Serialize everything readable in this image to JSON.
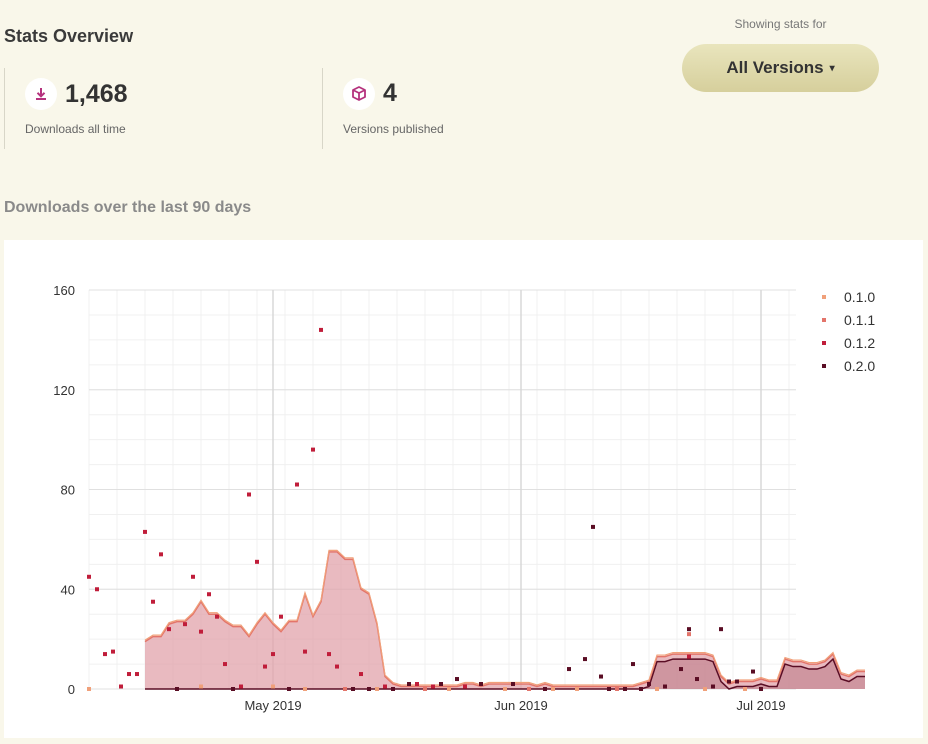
{
  "header": {
    "title": "Stats Overview",
    "showing_label": "Showing stats for",
    "version_select": "All Versions",
    "version_caret": "▾"
  },
  "stats": [
    {
      "value": "1,468",
      "label": "Downloads all time",
      "icon": "download-icon"
    },
    {
      "value": "4",
      "label": "Versions published",
      "icon": "package-icon"
    }
  ],
  "section_title": "Downloads over the last 90 days",
  "colors": {
    "accent": "#b5327d",
    "v010": "#f0a07a",
    "v011": "#e3746a",
    "v012": "#c01d3a",
    "v020": "#5a0d24"
  },
  "chart_data": {
    "type": "area",
    "title": "",
    "xlabel": "",
    "ylabel": "",
    "x_start": "2019-04-08",
    "x_ticks": [
      {
        "label": "May 2019",
        "date": "2019-05-01"
      },
      {
        "label": "Jun 2019",
        "date": "2019-06-01"
      },
      {
        "label": "Jul 2019",
        "date": "2019-07-01"
      }
    ],
    "ylim": [
      0,
      160
    ],
    "y_ticks": [
      0,
      40,
      80,
      120,
      160
    ],
    "grid": true,
    "legend_position": "top-right",
    "series": [
      {
        "name": "0.1.0",
        "color": "#f0a07a"
      },
      {
        "name": "0.1.1",
        "color": "#e3746a"
      },
      {
        "name": "0.1.2",
        "color": "#c01d3a"
      },
      {
        "name": "0.2.0",
        "color": "#5a0d24"
      }
    ],
    "area_band": {
      "start_day": 7,
      "totals": [
        19,
        21,
        21,
        26,
        27,
        27,
        30,
        35,
        30,
        30,
        27,
        25,
        25,
        21,
        26,
        30,
        26,
        23,
        27,
        27,
        38,
        29,
        35,
        55,
        55,
        52,
        52,
        40,
        38,
        26,
        5,
        2,
        1,
        1,
        1,
        1,
        1,
        1,
        1,
        1,
        2,
        2,
        1,
        2,
        2,
        2,
        2,
        2,
        2,
        1,
        2,
        1,
        1,
        1,
        1,
        1,
        1,
        1,
        1,
        1,
        1,
        1,
        2,
        3,
        13,
        13,
        14,
        14,
        14,
        14,
        14,
        13,
        5,
        2,
        3,
        3,
        3,
        4,
        3,
        3,
        12,
        11,
        11,
        10,
        10,
        11,
        14,
        6,
        5,
        7,
        7
      ]
    },
    "points": [
      {
        "s": 2,
        "day": 0,
        "y": 45
      },
      {
        "s": 2,
        "day": 1,
        "y": 40
      },
      {
        "s": 2,
        "day": 2,
        "y": 14
      },
      {
        "s": 2,
        "day": 3,
        "y": 15
      },
      {
        "s": 2,
        "day": 4,
        "y": 1
      },
      {
        "s": 2,
        "day": 5,
        "y": 6
      },
      {
        "s": 2,
        "day": 6,
        "y": 6
      },
      {
        "s": 2,
        "day": 7,
        "y": 63
      },
      {
        "s": 2,
        "day": 8,
        "y": 35
      },
      {
        "s": 2,
        "day": 9,
        "y": 54
      },
      {
        "s": 2,
        "day": 10,
        "y": 24
      },
      {
        "s": 2,
        "day": 12,
        "y": 26
      },
      {
        "s": 2,
        "day": 13,
        "y": 45
      },
      {
        "s": 2,
        "day": 14,
        "y": 23
      },
      {
        "s": 2,
        "day": 15,
        "y": 38
      },
      {
        "s": 2,
        "day": 16,
        "y": 29
      },
      {
        "s": 2,
        "day": 17,
        "y": 10
      },
      {
        "s": 2,
        "day": 19,
        "y": 1
      },
      {
        "s": 2,
        "day": 20,
        "y": 78
      },
      {
        "s": 2,
        "day": 21,
        "y": 51
      },
      {
        "s": 2,
        "day": 22,
        "y": 9
      },
      {
        "s": 2,
        "day": 23,
        "y": 14
      },
      {
        "s": 2,
        "day": 24,
        "y": 29
      },
      {
        "s": 2,
        "day": 26,
        "y": 82
      },
      {
        "s": 2,
        "day": 27,
        "y": 15
      },
      {
        "s": 2,
        "day": 28,
        "y": 96
      },
      {
        "s": 2,
        "day": 29,
        "y": 144
      },
      {
        "s": 2,
        "day": 30,
        "y": 14
      },
      {
        "s": 2,
        "day": 31,
        "y": 9
      },
      {
        "s": 2,
        "day": 34,
        "y": 6
      },
      {
        "s": 1,
        "day": 75,
        "y": 22
      },
      {
        "s": 2,
        "day": 75,
        "y": 13
      },
      {
        "s": 3,
        "day": 75,
        "y": 24
      },
      {
        "s": 3,
        "day": 63,
        "y": 65
      },
      {
        "s": 3,
        "day": 60,
        "y": 8
      },
      {
        "s": 3,
        "day": 62,
        "y": 12
      },
      {
        "s": 3,
        "day": 64,
        "y": 5
      },
      {
        "s": 3,
        "day": 68,
        "y": 10
      },
      {
        "s": 3,
        "day": 74,
        "y": 8
      },
      {
        "s": 3,
        "day": 79,
        "y": 24
      },
      {
        "s": 3,
        "day": 80,
        "y": 3
      },
      {
        "s": 3,
        "day": 81,
        "y": 3
      },
      {
        "s": 3,
        "day": 83,
        "y": 7
      },
      {
        "s": 3,
        "day": 76,
        "y": 4
      },
      {
        "s": 3,
        "day": 40,
        "y": 2
      },
      {
        "s": 3,
        "day": 44,
        "y": 2
      },
      {
        "s": 3,
        "day": 46,
        "y": 4
      },
      {
        "s": 3,
        "day": 49,
        "y": 2
      },
      {
        "s": 3,
        "day": 53,
        "y": 2
      },
      {
        "s": 3,
        "day": 70,
        "y": 2
      },
      {
        "s": 3,
        "day": 72,
        "y": 1
      },
      {
        "s": 3,
        "day": 78,
        "y": 1
      },
      {
        "s": 0,
        "day": 0,
        "y": 0
      },
      {
        "s": 0,
        "day": 14,
        "y": 1
      },
      {
        "s": 0,
        "day": 23,
        "y": 1
      },
      {
        "s": 0,
        "day": 27,
        "y": 0
      },
      {
        "s": 0,
        "day": 36,
        "y": 0
      },
      {
        "s": 0,
        "day": 45,
        "y": 0
      },
      {
        "s": 0,
        "day": 52,
        "y": 0
      },
      {
        "s": 0,
        "day": 58,
        "y": 0
      },
      {
        "s": 0,
        "day": 61,
        "y": 0
      },
      {
        "s": 0,
        "day": 71,
        "y": 0
      },
      {
        "s": 0,
        "day": 77,
        "y": 0
      },
      {
        "s": 0,
        "day": 82,
        "y": 0
      },
      {
        "s": 1,
        "day": 32,
        "y": 0
      },
      {
        "s": 1,
        "day": 42,
        "y": 0
      },
      {
        "s": 1,
        "day": 55,
        "y": 0
      },
      {
        "s": 1,
        "day": 66,
        "y": 0
      },
      {
        "s": 2,
        "day": 37,
        "y": 1
      },
      {
        "s": 2,
        "day": 41,
        "y": 2
      },
      {
        "s": 2,
        "day": 43,
        "y": 1
      },
      {
        "s": 2,
        "day": 47,
        "y": 1
      },
      {
        "s": 3,
        "day": 11,
        "y": 0
      },
      {
        "s": 3,
        "day": 18,
        "y": 0
      },
      {
        "s": 3,
        "day": 25,
        "y": 0
      },
      {
        "s": 3,
        "day": 33,
        "y": 0
      },
      {
        "s": 3,
        "day": 35,
        "y": 0
      },
      {
        "s": 3,
        "day": 38,
        "y": 0
      },
      {
        "s": 3,
        "day": 57,
        "y": 0
      },
      {
        "s": 3,
        "day": 65,
        "y": 0
      },
      {
        "s": 3,
        "day": 67,
        "y": 0
      },
      {
        "s": 3,
        "day": 69,
        "y": 0
      },
      {
        "s": 3,
        "day": 84,
        "y": 0
      }
    ]
  }
}
